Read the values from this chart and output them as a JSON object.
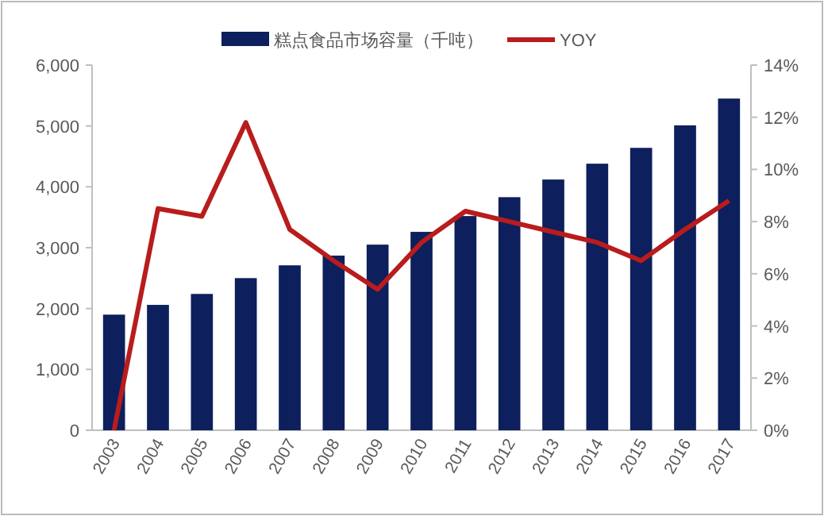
{
  "chart_data": {
    "type": "bar",
    "categories": [
      "2003",
      "2004",
      "2005",
      "2006",
      "2007",
      "2008",
      "2009",
      "2010",
      "2011",
      "2012",
      "2013",
      "2014",
      "2015",
      "2016",
      "2017"
    ],
    "series": [
      {
        "name": "糕点食品市场容量（千吨）",
        "color": "#0d1f5c",
        "values": [
          1900,
          2060,
          2240,
          2500,
          2710,
          2870,
          3050,
          3260,
          3520,
          3830,
          4120,
          4380,
          4640,
          5010,
          5450
        ]
      },
      {
        "name": "YOY",
        "type": "line",
        "axis": "y2",
        "color": "#b81c1c",
        "values": [
          0,
          8.5,
          8.2,
          11.8,
          7.7,
          6.5,
          5.4,
          7.2,
          8.4,
          8.0,
          7.6,
          7.2,
          6.5,
          7.7,
          8.8
        ]
      }
    ],
    "ylim": [
      0,
      6000
    ],
    "yticks": [
      {
        "value": 0,
        "label": "0"
      },
      {
        "value": 1000,
        "label": "1,000"
      },
      {
        "value": 2000,
        "label": "2,000"
      },
      {
        "value": 3000,
        "label": "3,000"
      },
      {
        "value": 4000,
        "label": "4,000"
      },
      {
        "value": 5000,
        "label": "5,000"
      },
      {
        "value": 6000,
        "label": "6,000"
      }
    ],
    "y2lim": [
      0,
      14
    ],
    "y2ticks": [
      {
        "value": 0,
        "label": "0%"
      },
      {
        "value": 2,
        "label": "2%"
      },
      {
        "value": 4,
        "label": "4%"
      },
      {
        "value": 6,
        "label": "6%"
      },
      {
        "value": 8,
        "label": "8%"
      },
      {
        "value": 10,
        "label": "10%"
      },
      {
        "value": 12,
        "label": "12%"
      },
      {
        "value": 14,
        "label": "14%"
      }
    ],
    "legend": "top",
    "grid": false
  }
}
